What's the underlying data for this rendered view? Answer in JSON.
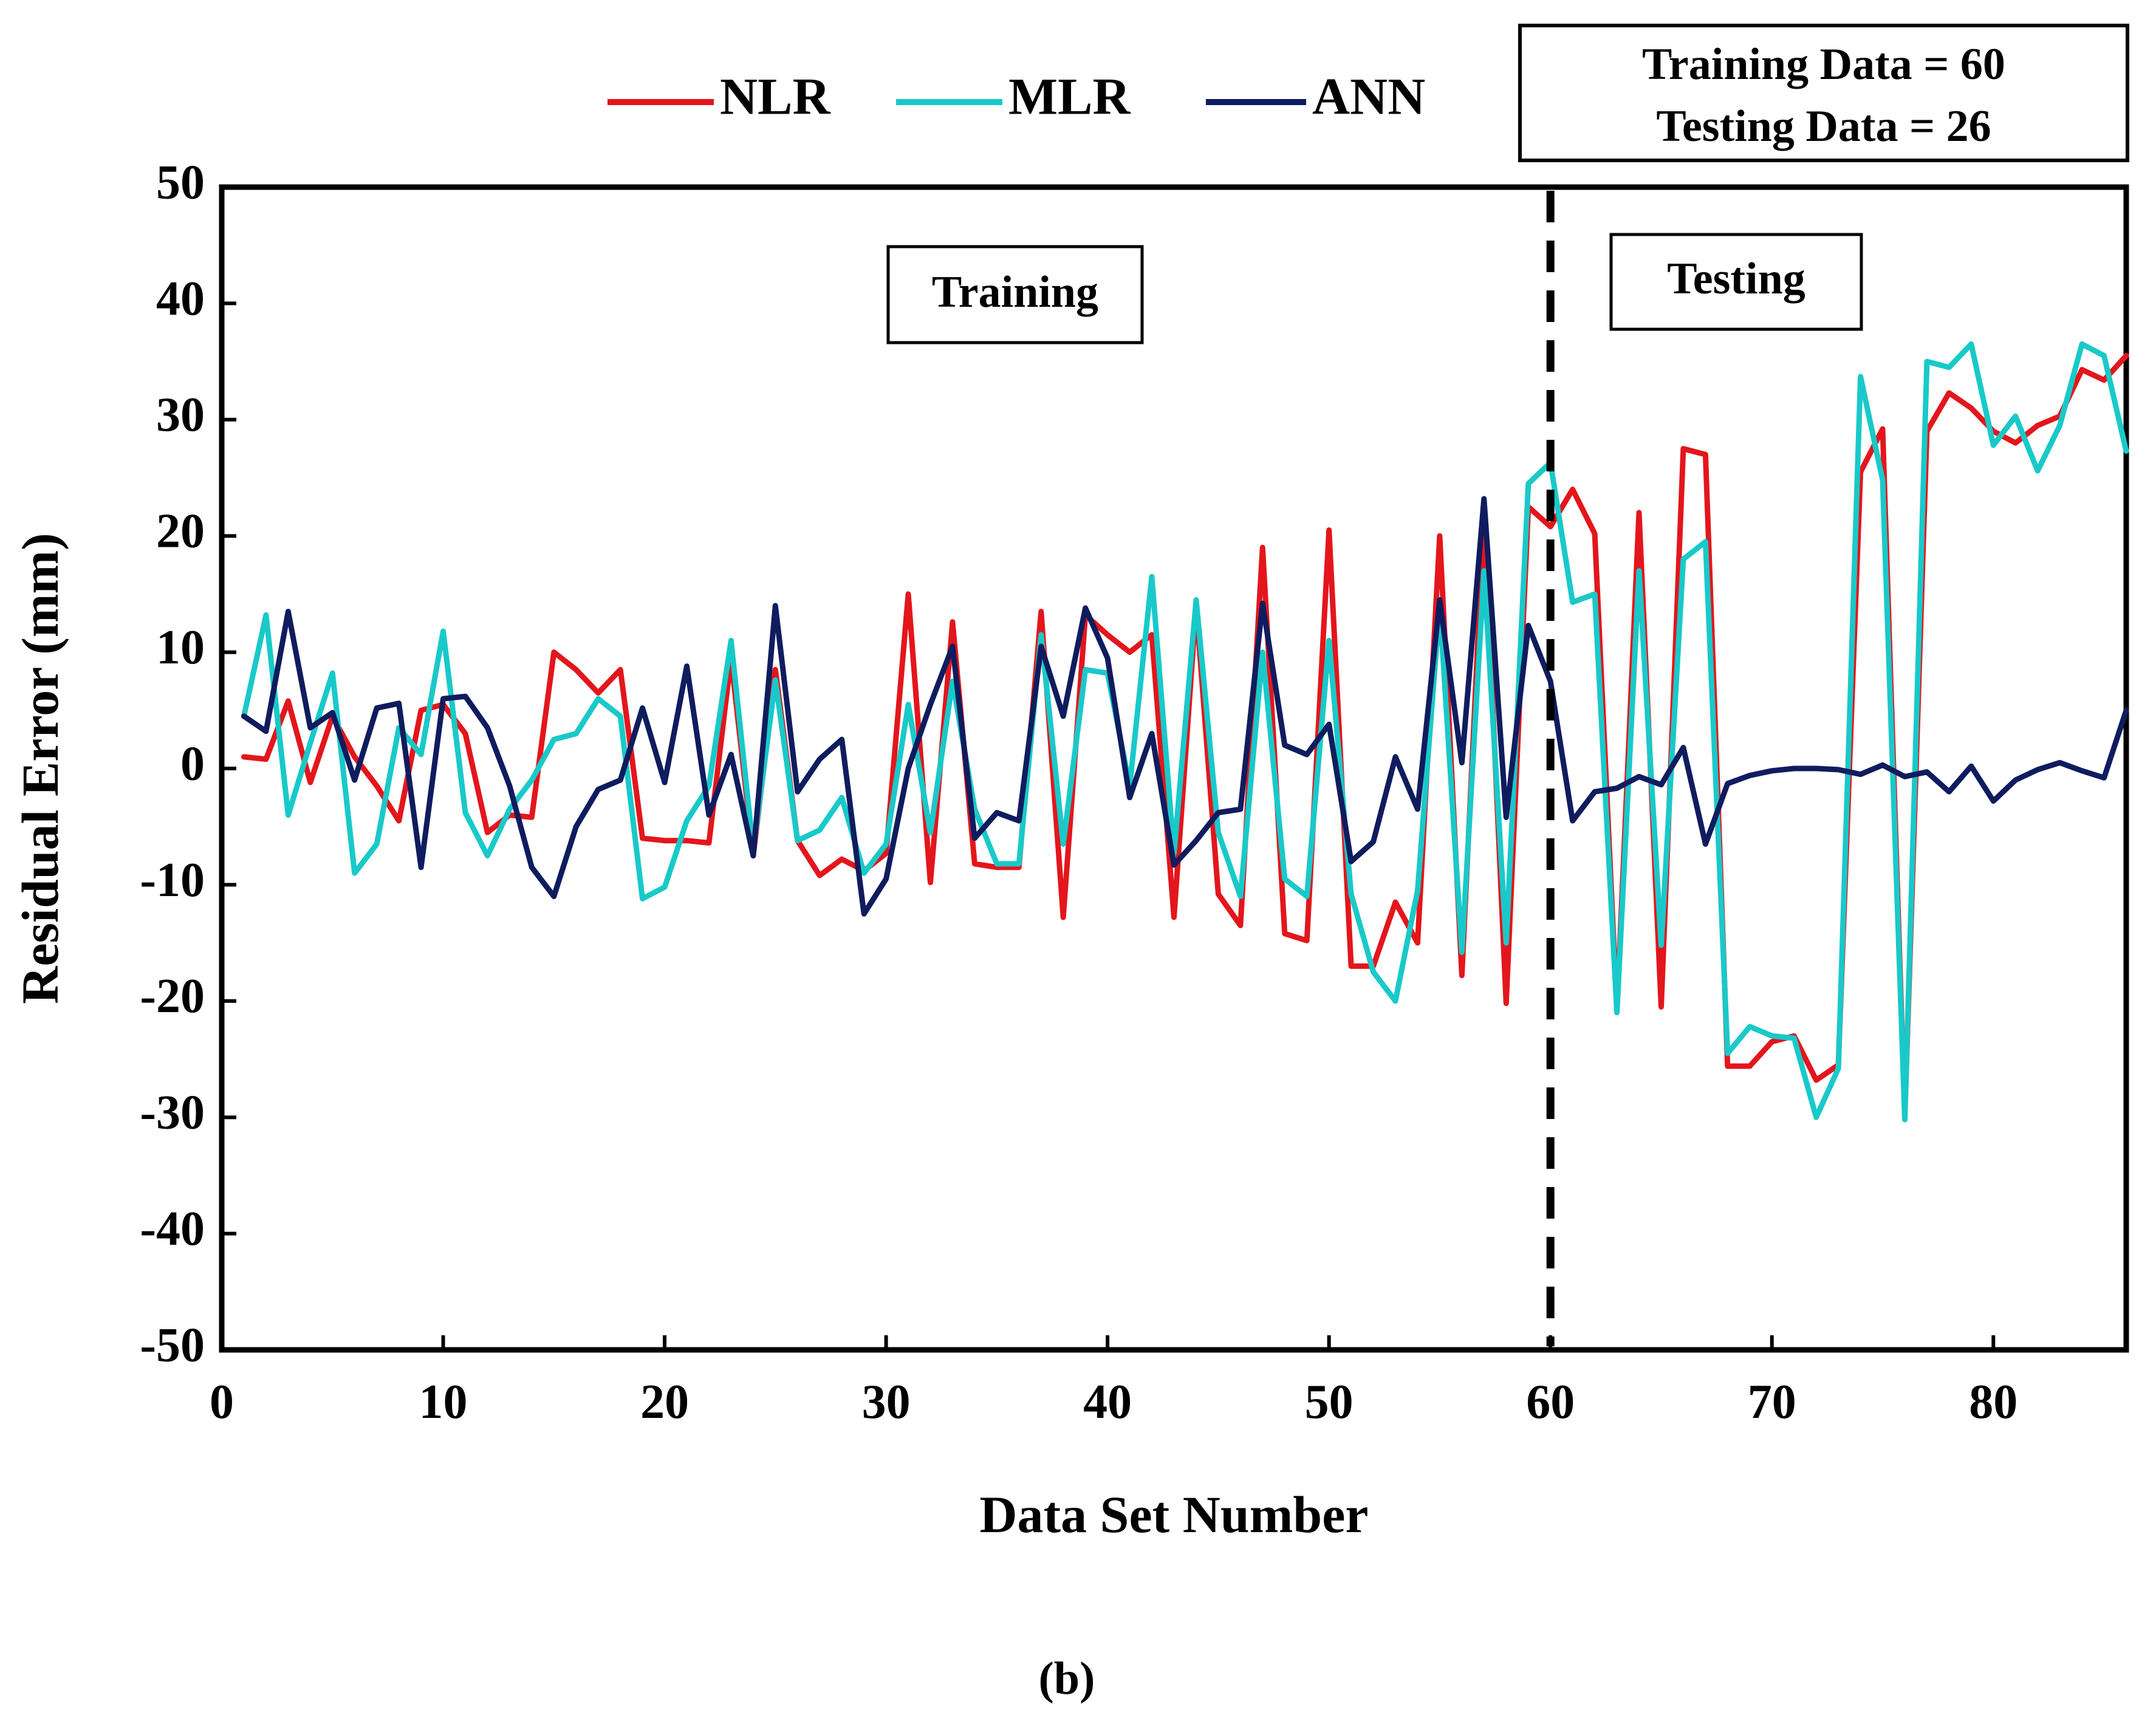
{
  "caption": "(b)",
  "colors": {
    "NLR": "#e3161c",
    "MLR": "#19c9c9",
    "ANN": "#0f1c5e"
  },
  "chart_data": {
    "type": "line",
    "xlabel": "Data Set Number",
    "ylabel": "Residual Error (mm)",
    "xlim": [
      0,
      86
    ],
    "ylim": [
      -50,
      50
    ],
    "xticks": [
      0,
      10,
      20,
      30,
      40,
      50,
      60,
      70,
      80
    ],
    "yticks": [
      -50,
      -40,
      -30,
      -20,
      -10,
      0,
      10,
      20,
      30,
      40,
      50
    ],
    "split_x": 60,
    "legend": [
      "NLR",
      "MLR",
      "ANN"
    ],
    "info_box": [
      "Training Data = 60",
      "Testing Data = 26"
    ],
    "annotations": {
      "training": "Training",
      "testing": "Testing"
    },
    "x": [
      1,
      2,
      3,
      4,
      5,
      6,
      7,
      8,
      9,
      10,
      11,
      12,
      13,
      14,
      15,
      16,
      17,
      18,
      19,
      20,
      21,
      22,
      23,
      24,
      25,
      26,
      27,
      28,
      29,
      30,
      31,
      32,
      33,
      34,
      35,
      36,
      37,
      38,
      39,
      40,
      41,
      42,
      43,
      44,
      45,
      46,
      47,
      48,
      49,
      50,
      51,
      52,
      53,
      54,
      55,
      56,
      57,
      58,
      59,
      60,
      61,
      62,
      63,
      64,
      65,
      66,
      67,
      68,
      69,
      70,
      71,
      72,
      73,
      74,
      75,
      76,
      77,
      78,
      79,
      80,
      81,
      82,
      83,
      84,
      85,
      86
    ],
    "series": [
      {
        "name": "NLR",
        "values": [
          1,
          0.8,
          5.8,
          -1.2,
          4.5,
          1,
          -1.5,
          -4.5,
          5,
          5.5,
          3,
          -5.5,
          -4,
          -4.2,
          10,
          8.5,
          6.5,
          8.5,
          -6,
          -6.2,
          -6.2,
          -6.4,
          9.5,
          -7.5,
          8.5,
          -6.2,
          -9.2,
          -7.8,
          -8.8,
          -7.3,
          15,
          -9.8,
          12.6,
          -8.2,
          -8.5,
          -8.5,
          13.5,
          -12.8,
          13.2,
          11.5,
          10,
          11.5,
          -12.8,
          14,
          -10.8,
          -13.5,
          19,
          -14.2,
          -14.8,
          20.5,
          -17,
          -17,
          -11.5,
          -15,
          20,
          -17.8,
          22,
          -20.2,
          22.5,
          20.8,
          24,
          20.2,
          -20.8,
          22,
          -20.5,
          27.5,
          27,
          -25.6,
          -25.6,
          -23.5,
          -23,
          -26.8,
          -25.5,
          25.5,
          29.2,
          -30,
          29,
          32.3,
          31,
          29,
          28,
          29.5,
          30.3,
          34.3,
          33.4,
          35.5
        ]
      },
      {
        "name": "MLR",
        "values": [
          4.5,
          13.2,
          -4,
          2.2,
          8.2,
          -9,
          -6.5,
          3.5,
          1.2,
          11.8,
          -3.8,
          -7.5,
          -3.5,
          -1,
          2.5,
          3,
          6,
          4.5,
          -11.2,
          -10.2,
          -4.5,
          -1.5,
          11,
          -7,
          7.6,
          -6.2,
          -5.3,
          -2.5,
          -9,
          -6.5,
          5.5,
          -5.5,
          7.5,
          -3.5,
          -8.2,
          -8.2,
          11.5,
          -6.5,
          8.5,
          8.2,
          -1.5,
          16.5,
          -7.3,
          14.5,
          -5.5,
          -11,
          10,
          -9.5,
          -11,
          11,
          -10.8,
          -17.5,
          -20,
          -10.5,
          14,
          -15.8,
          17,
          -15,
          24.5,
          26.3,
          14.3,
          15,
          -21,
          17,
          -15.2,
          18,
          19.5,
          -24.5,
          -22.2,
          -23,
          -23.2,
          -30,
          -25.8,
          33.7,
          24.8,
          -30.2,
          35,
          34.5,
          36.5,
          27.8,
          30.3,
          25.6,
          29.5,
          36.5,
          35.5,
          27.3
        ]
      },
      {
        "name": "ANN",
        "values": [
          4.5,
          3.2,
          13.5,
          3.5,
          4.8,
          -1,
          5.2,
          5.6,
          -8.5,
          6,
          6.2,
          3.5,
          -1.5,
          -8.5,
          -11,
          -5,
          -1.8,
          -1,
          5.2,
          -1.2,
          8.8,
          -4,
          1.2,
          -7.5,
          14,
          -2,
          0.8,
          2.5,
          -12.5,
          -9.5,
          0,
          5.5,
          10.5,
          -6,
          -3.8,
          -4.5,
          10.5,
          4.5,
          13.8,
          9.5,
          -2.5,
          3,
          -8.3,
          -6.2,
          -3.8,
          -3.5,
          14.2,
          2,
          1.2,
          3.8,
          -8,
          -6.3,
          1,
          -3.5,
          14.5,
          0.5,
          23.2,
          -4.2,
          12.3,
          7.5,
          -4.5,
          -2,
          -1.7,
          -0.7,
          -1.4,
          1.8,
          -6.5,
          -1.3,
          -0.6,
          -0.2,
          0,
          0,
          -0.1,
          -0.5,
          0.3,
          -0.7,
          -0.3,
          -2,
          0.2,
          -2.8,
          -1,
          -0.1,
          0.5,
          -0.2,
          -0.8,
          5
        ]
      }
    ]
  }
}
